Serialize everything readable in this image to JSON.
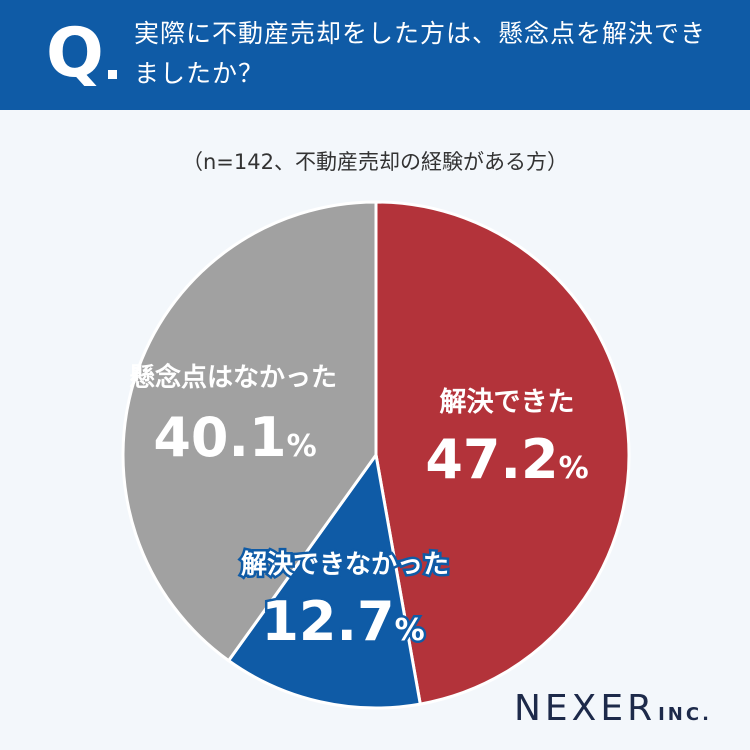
{
  "header": {
    "q_label": "Q",
    "question": "実際に不動産売却をした方は、懸念点を解決できましたか？"
  },
  "note": "（n=142、不動産売却の経験がある方）",
  "logo": {
    "main": "NEXER",
    "sub": "INC."
  },
  "colors": {
    "header": "#0f5ba6",
    "solved": "#b3333a",
    "not_solved": "#0f5ba6",
    "no_concern": "#a1a1a1"
  },
  "chart_data": {
    "type": "pie",
    "n": 142,
    "slices": [
      {
        "name": "解決できた",
        "value": 47.2,
        "label": "47.2",
        "color": "#b3333a"
      },
      {
        "name": "解決できなかった",
        "value": 12.7,
        "label": "12.7",
        "color": "#0f5ba6"
      },
      {
        "name": "懸念点はなかった",
        "value": 40.1,
        "label": "40.1",
        "color": "#a1a1a1"
      }
    ],
    "unit": "%"
  }
}
